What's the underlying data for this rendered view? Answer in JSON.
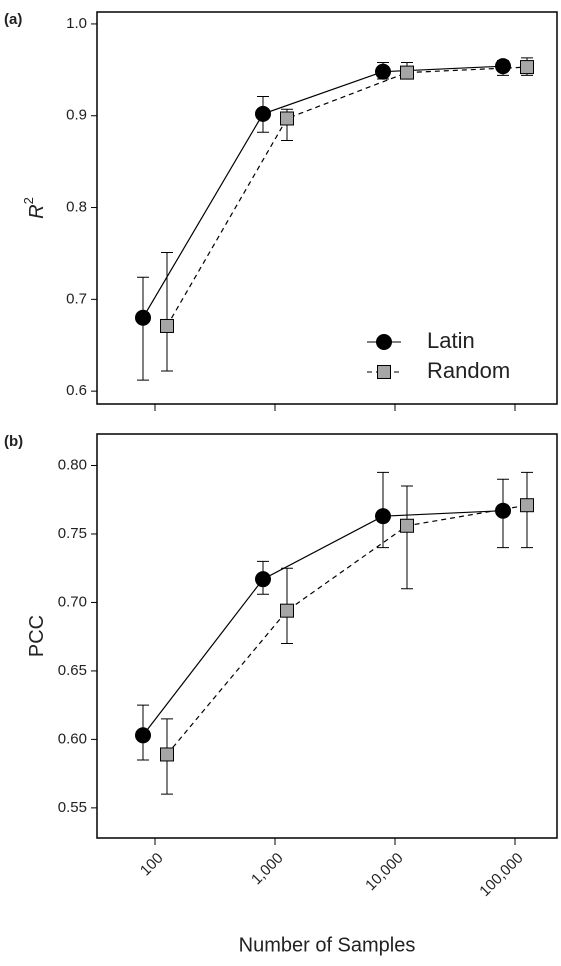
{
  "chart_data": [
    {
      "type": "line",
      "panel_label": "(a)",
      "y_label": "R",
      "y_label_sup": "2",
      "ylim": [
        0.586,
        1.013
      ],
      "yticks": [
        0.6,
        0.7,
        0.8,
        0.9,
        {
          "value": 1,
          "label": "1.0"
        }
      ],
      "legend": "bottom-right",
      "series": [
        {
          "name": "Latin",
          "color": "#000000",
          "marker": "circle",
          "dash": false,
          "values": [
            0.68,
            0.902,
            0.948,
            0.954
          ],
          "lower": [
            0.612,
            0.882,
            0.94,
            0.944
          ],
          "upper": [
            0.724,
            0.921,
            0.958,
            0.96
          ]
        },
        {
          "name": "Random",
          "color": "#a6a6a6",
          "marker": "square",
          "dash": true,
          "values": [
            0.671,
            0.897,
            0.947,
            0.953
          ],
          "lower": [
            0.622,
            0.873,
            0.94,
            0.944
          ],
          "upper": [
            0.751,
            0.907,
            0.958,
            0.963
          ]
        }
      ]
    },
    {
      "type": "line",
      "panel_label": "(b)",
      "y_label": "PCC",
      "x_label": "Number of Samples",
      "categories": [
        "100",
        "1,000",
        "10,000",
        "100,000"
      ],
      "ylim": [
        0.528,
        0.823
      ],
      "yticks": [
        0.55,
        {
          "value": 0.6,
          "label": "0.60"
        },
        0.65,
        {
          "value": 0.7,
          "label": "0.70"
        },
        0.75,
        {
          "value": 0.8,
          "label": "0.80"
        }
      ],
      "series": [
        {
          "name": "Latin",
          "color": "#000000",
          "marker": "circle",
          "dash": false,
          "values": [
            0.603,
            0.717,
            0.763,
            0.767
          ],
          "lower": [
            0.585,
            0.706,
            0.74,
            0.74
          ],
          "upper": [
            0.625,
            0.73,
            0.795,
            0.79
          ]
        },
        {
          "name": "Random",
          "color": "#a6a6a6",
          "marker": "square",
          "dash": true,
          "values": [
            0.589,
            0.694,
            0.756,
            0.771
          ],
          "lower": [
            0.56,
            0.67,
            0.71,
            0.74
          ],
          "upper": [
            0.615,
            0.725,
            0.785,
            0.795
          ]
        }
      ]
    }
  ]
}
